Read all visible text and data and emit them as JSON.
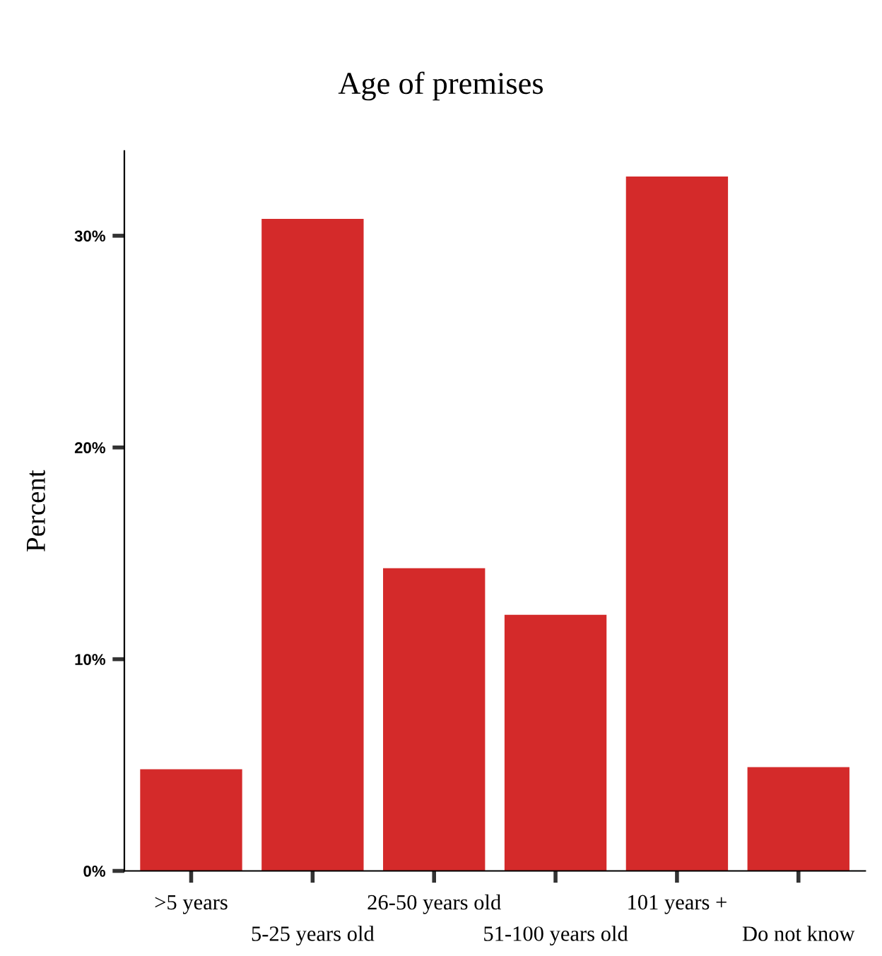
{
  "chart_data": {
    "type": "bar",
    "title": "Age of premises",
    "ylabel": "Percent",
    "categories": [
      ">5 years",
      "5-25 years old",
      "26-50 years old",
      "51-100 years old",
      "101 years +",
      "Do not know"
    ],
    "values": [
      4.8,
      30.8,
      14.3,
      12.1,
      32.8,
      4.9
    ],
    "color": "#d42a2a",
    "ylim": [
      0,
      34
    ],
    "yticks": [
      {
        "value": 0,
        "label": "0%"
      },
      {
        "value": 10,
        "label": "10%"
      },
      {
        "value": 20,
        "label": "20%"
      },
      {
        "value": 30,
        "label": "30%"
      }
    ],
    "grid": false,
    "legend": false
  }
}
